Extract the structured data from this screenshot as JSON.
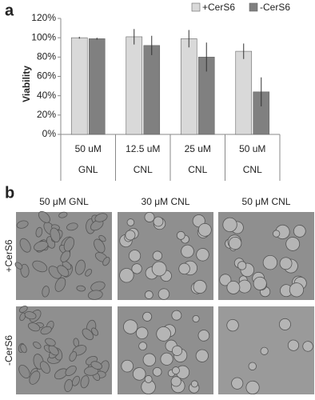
{
  "panel_a_label": "a",
  "chart_data": {
    "type": "bar",
    "y_label": "Viability",
    "categories": [
      "50 uM",
      "12.5 uM",
      "25 uM",
      "50 uM"
    ],
    "category_groups": [
      "GNL",
      "CNL",
      "CNL",
      "CNL"
    ],
    "series": [
      {
        "name": "+CerS6",
        "color": "#d9d9d9",
        "values": [
          100,
          101,
          99,
          86
        ],
        "errors": [
          1,
          8,
          9,
          8
        ]
      },
      {
        "name": "-CerS6",
        "color": "#808080",
        "values": [
          99,
          92,
          80,
          44
        ],
        "errors": [
          1,
          10,
          15,
          15
        ]
      }
    ],
    "ylim": [
      0,
      120
    ],
    "yticks": [
      {
        "value": 0,
        "label": "0%"
      },
      {
        "value": 20,
        "label": "20%"
      },
      {
        "value": 40,
        "label": "40%"
      },
      {
        "value": 60,
        "label": "60%"
      },
      {
        "value": 80,
        "label": "80%"
      },
      {
        "value": 100,
        "label": "100%"
      },
      {
        "value": 120,
        "label": "120%"
      }
    ],
    "legend": "top-right"
  },
  "panel_b": {
    "label": "b",
    "columns": [
      "50 μM GNL",
      "30 μM CNL",
      "50 μM CNL"
    ],
    "rows": [
      "+CerS6",
      "-CerS6"
    ]
  }
}
